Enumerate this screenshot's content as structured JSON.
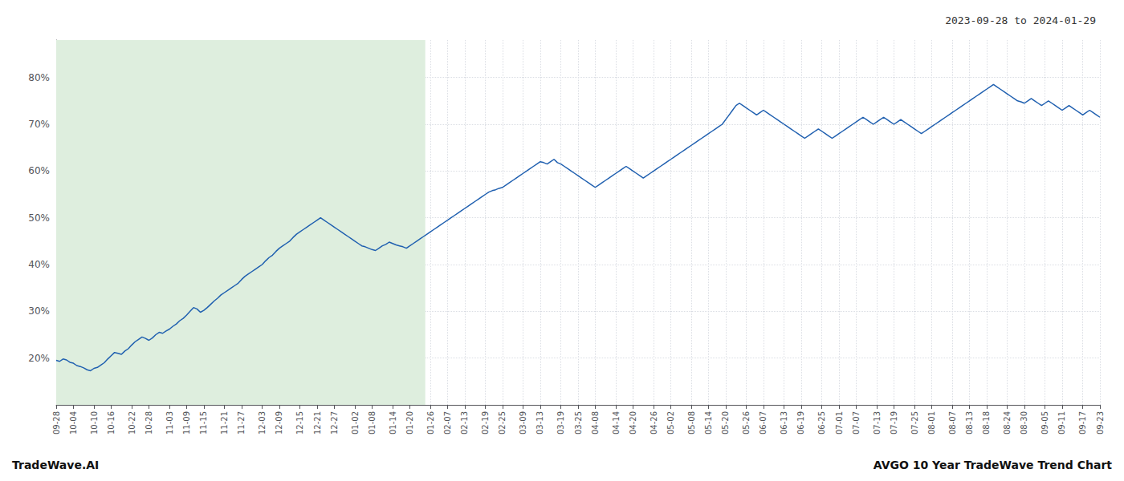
{
  "chart_data": {
    "type": "line",
    "title": "AVGO 10 Year TradeWave Trend Chart",
    "subtitle": "2023-09-28 to 2024-01-29",
    "annotations": [
      "TradeWave.AI"
    ],
    "color": "#2060b0",
    "grid": true,
    "highlight": {
      "x": [
        0,
        107.5
      ],
      "color": "#deeede"
    },
    "ylim": [
      10,
      88
    ],
    "yticks": [
      {
        "value": 20,
        "label": "20%"
      },
      {
        "value": 30,
        "label": "30%"
      },
      {
        "value": 40,
        "label": "40%"
      },
      {
        "value": 50,
        "label": "50%"
      },
      {
        "value": 60,
        "label": "60%"
      },
      {
        "value": 70,
        "label": "70%"
      },
      {
        "value": 80,
        "label": "80%"
      }
    ],
    "categories": [
      "09-28",
      null,
      null,
      null,
      null,
      "10-04",
      null,
      null,
      null,
      null,
      null,
      "10-10",
      null,
      null,
      null,
      null,
      "10-16",
      null,
      null,
      null,
      null,
      null,
      "10-22",
      null,
      null,
      null,
      null,
      "10-28",
      null,
      null,
      null,
      null,
      null,
      "11-03",
      null,
      null,
      null,
      null,
      "11-09",
      null,
      null,
      null,
      null,
      "11-15",
      null,
      null,
      null,
      null,
      null,
      "11-21",
      null,
      null,
      null,
      null,
      "11-27",
      null,
      null,
      null,
      null,
      null,
      "12-03",
      null,
      null,
      null,
      null,
      "12-09",
      null,
      null,
      null,
      null,
      null,
      "12-15",
      null,
      null,
      null,
      null,
      "12-21",
      null,
      null,
      null,
      null,
      "12-27",
      null,
      null,
      null,
      null,
      null,
      "01-02",
      null,
      null,
      null,
      null,
      "01-08",
      null,
      null,
      null,
      null,
      null,
      "01-14",
      null,
      null,
      null,
      null,
      "01-20",
      null,
      null,
      null,
      null,
      null,
      "01-26",
      null,
      null,
      null,
      null,
      "02-07",
      null,
      null,
      null,
      null,
      "02-13",
      null,
      null,
      null,
      null,
      null,
      "02-19",
      null,
      null,
      null,
      null,
      "02-25",
      null,
      null,
      null,
      null,
      null,
      "03-09",
      null,
      null,
      null,
      null,
      "03-13",
      null,
      null,
      null,
      null,
      null,
      "03-19",
      null,
      null,
      null,
      null,
      "03-25",
      null,
      null,
      null,
      null,
      "04-08",
      null,
      null,
      null,
      null,
      null,
      "04-14",
      null,
      null,
      null,
      null,
      "04-20",
      null,
      null,
      null,
      null,
      null,
      "04-26",
      null,
      null,
      null,
      null,
      "05-02",
      null,
      null,
      null,
      null,
      null,
      "05-08",
      null,
      null,
      null,
      null,
      "05-14",
      null,
      null,
      null,
      null,
      "05-20",
      null,
      null,
      null,
      null,
      null,
      "05-26",
      null,
      null,
      null,
      null,
      "06-07",
      null,
      null,
      null,
      null,
      null,
      "06-13",
      null,
      null,
      null,
      null,
      "06-19",
      null,
      null,
      null,
      null,
      null,
      "06-25",
      null,
      null,
      null,
      null,
      "07-01",
      null,
      null,
      null,
      null,
      "07-07",
      null,
      null,
      null,
      null,
      null,
      "07-13",
      null,
      null,
      null,
      null,
      "07-19",
      null,
      null,
      null,
      null,
      null,
      "07-25",
      null,
      null,
      null,
      null,
      "08-01",
      null,
      null,
      null,
      null,
      null,
      "08-07",
      null,
      null,
      null,
      null,
      "08-13",
      null,
      null,
      null,
      null,
      "08-18",
      null,
      null,
      null,
      null,
      null,
      "08-24",
      null,
      null,
      null,
      null,
      "08-30",
      null,
      null,
      null,
      null,
      null,
      "09-05",
      null,
      null,
      null,
      null,
      "09-11",
      null,
      null,
      null,
      null,
      null,
      "09-17",
      null,
      null,
      null,
      null,
      "09-23"
    ],
    "values": [
      19.5,
      19.3,
      19.8,
      19.6,
      19.1,
      18.9,
      18.4,
      18.2,
      17.9,
      17.5,
      17.3,
      17.8,
      18.0,
      18.5,
      19.0,
      19.8,
      20.5,
      21.2,
      21.0,
      20.8,
      21.5,
      22.0,
      22.8,
      23.5,
      24.0,
      24.5,
      24.2,
      23.8,
      24.3,
      25.0,
      25.5,
      25.3,
      25.8,
      26.2,
      26.8,
      27.3,
      28.0,
      28.5,
      29.2,
      30.0,
      30.8,
      30.5,
      29.8,
      30.2,
      30.8,
      31.5,
      32.2,
      32.8,
      33.5,
      34.0,
      34.5,
      35.0,
      35.5,
      36.0,
      36.8,
      37.5,
      38.0,
      38.5,
      39.0,
      39.5,
      40.0,
      40.8,
      41.5,
      42.0,
      42.8,
      43.5,
      44.0,
      44.5,
      45.0,
      45.8,
      46.5,
      47.0,
      47.5,
      48.0,
      48.5,
      49.0,
      49.5,
      50.0,
      49.5,
      49.0,
      48.5,
      48.0,
      47.5,
      47.0,
      46.5,
      46.0,
      45.5,
      45.0,
      44.5,
      44.0,
      43.8,
      43.5,
      43.2,
      43.0,
      43.5,
      44.0,
      44.3,
      44.8,
      44.5,
      44.2,
      44.0,
      43.8,
      43.5,
      44.0,
      44.5,
      45.0,
      45.5,
      46.0,
      46.5,
      47.0,
      47.5,
      48.0,
      48.5,
      49.0,
      49.5,
      50.0,
      50.5,
      51.0,
      51.5,
      52.0,
      52.5,
      53.0,
      53.5,
      54.0,
      54.5,
      55.0,
      55.5,
      55.8,
      56.0,
      56.3,
      56.5,
      57.0,
      57.5,
      58.0,
      58.5,
      59.0,
      59.5,
      60.0,
      60.5,
      61.0,
      61.5,
      62.0,
      61.8,
      61.5,
      62.0,
      62.5,
      61.8,
      61.5,
      61.0,
      60.5,
      60.0,
      59.5,
      59.0,
      58.5,
      58.0,
      57.5,
      57.0,
      56.5,
      57.0,
      57.5,
      58.0,
      58.5,
      59.0,
      59.5,
      60.0,
      60.5,
      61.0,
      60.5,
      60.0,
      59.5,
      59.0,
      58.5,
      59.0,
      59.5,
      60.0,
      60.5,
      61.0,
      61.5,
      62.0,
      62.5,
      63.0,
      63.5,
      64.0,
      64.5,
      65.0,
      65.5,
      66.0,
      66.5,
      67.0,
      67.5,
      68.0,
      68.5,
      69.0,
      69.5,
      70.0,
      71.0,
      72.0,
      73.0,
      74.0,
      74.5,
      74.0,
      73.5,
      73.0,
      72.5,
      72.0,
      72.5,
      73.0,
      72.5,
      72.0,
      71.5,
      71.0,
      70.5,
      70.0,
      69.5,
      69.0,
      68.5,
      68.0,
      67.5,
      67.0,
      67.5,
      68.0,
      68.5,
      69.0,
      68.5,
      68.0,
      67.5,
      67.0,
      67.5,
      68.0,
      68.5,
      69.0,
      69.5,
      70.0,
      70.5,
      71.0,
      71.5,
      71.0,
      70.5,
      70.0,
      70.5,
      71.0,
      71.5,
      71.0,
      70.5,
      70.0,
      70.5,
      71.0,
      70.5,
      70.0,
      69.5,
      69.0,
      68.5,
      68.0,
      68.5,
      69.0,
      69.5,
      70.0,
      70.5,
      71.0,
      71.5,
      72.0,
      72.5,
      73.0,
      73.5,
      74.0,
      74.5,
      75.0,
      75.5,
      76.0,
      76.5,
      77.0,
      77.5,
      78.0,
      78.5,
      78.0,
      77.5,
      77.0,
      76.5,
      76.0,
      75.5,
      75.0,
      74.8,
      74.5,
      75.0,
      75.5,
      75.0,
      74.5,
      74.0,
      74.5,
      75.0,
      74.5,
      74.0,
      73.5,
      73.0,
      73.5,
      74.0,
      73.5,
      73.0,
      72.5,
      72.0,
      72.5,
      73.0,
      72.5,
      72.0,
      71.5
    ]
  }
}
